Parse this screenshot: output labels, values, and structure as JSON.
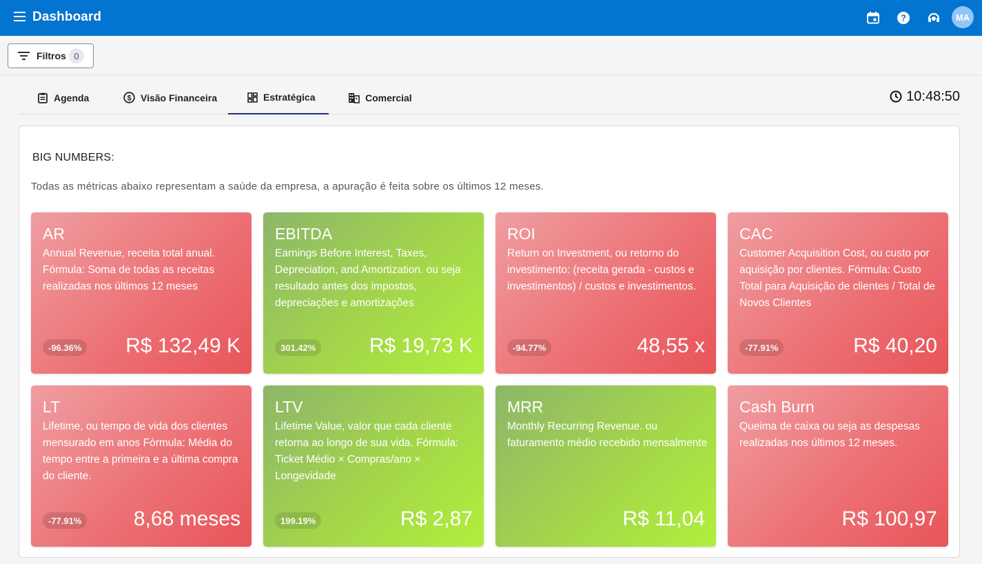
{
  "header": {
    "title": "Dashboard",
    "avatar_initials": "MA",
    "icons": [
      "menu-icon",
      "calendar-icon",
      "help-icon",
      "support-icon"
    ]
  },
  "filters": {
    "label": "Filtros",
    "count": "0"
  },
  "tabs": [
    {
      "label": "Agenda",
      "icon": "clipboard-icon"
    },
    {
      "label": "Visão Financeira",
      "icon": "dollar-icon"
    },
    {
      "label": "Estratégica",
      "icon": "dashboard-icon",
      "active": true
    },
    {
      "label": "Comercial",
      "icon": "building-icon"
    }
  ],
  "clock": "10:48:50",
  "panel": {
    "heading": "BIG NUMBERS:",
    "subtitle": "Todas as métricas abaixo representam a saúde da empresa, a apuração é feita sobre os últimos 12 meses."
  },
  "cards": [
    {
      "title": "AR",
      "description": "Annual Revenue, receita total anual. Fórmula: Soma de todas as receitas realizadas nos últimos 12 meses",
      "badge": "-96.36%",
      "value": "R$ 132,49 K",
      "color": "red"
    },
    {
      "title": "EBITDA",
      "description": "Earnings Before Interest, Taxes, Depreciation, and Amortization. ou seja resultado antes dos impostos, depreciações e amortizações",
      "badge": "301.42%",
      "value": "R$ 19,73 K",
      "color": "green"
    },
    {
      "title": "ROI",
      "description": "Return on Investment, ou retorno do investimento: (receita gerada - custos e investimentos) / custos e investimentos.",
      "badge": "-94.77%",
      "value": "48,55 x",
      "color": "red"
    },
    {
      "title": "CAC",
      "description": "Customer Acquisition Cost, ou custo por aquisição por clientes. Fórmula: Custo Total para Aquisição de clientes / Total de Novos Clientes",
      "badge": "-77.91%",
      "value": "R$ 40,20",
      "color": "red"
    },
    {
      "title": "LT",
      "description": "Lifetime, ou tempo de vida dos clientes mensurado em anos Fórmula: Média do tempo entre a primeira e a última compra do cliente.",
      "badge": "-77.91%",
      "value": "8,68 meses",
      "color": "red"
    },
    {
      "title": "LTV",
      "description": "Lifetime Value, valor que cada cliente retorna ao longo de sua vida. Fórmula: Ticket Médio × Compras/ano × Longevidade",
      "badge": "199.19%",
      "value": "R$ 2,87",
      "color": "green"
    },
    {
      "title": "MRR",
      "description": "Monthly Recurring Revenue. ou faturamento médio recebido mensalmente",
      "badge": "",
      "value": "R$ 11,04",
      "color": "green"
    },
    {
      "title": "Cash Burn",
      "description": "Queima de caixa ou seja as despesas realizadas nos últimos 12 meses.",
      "badge": "",
      "value": "R$ 100,97",
      "color": "red"
    }
  ]
}
